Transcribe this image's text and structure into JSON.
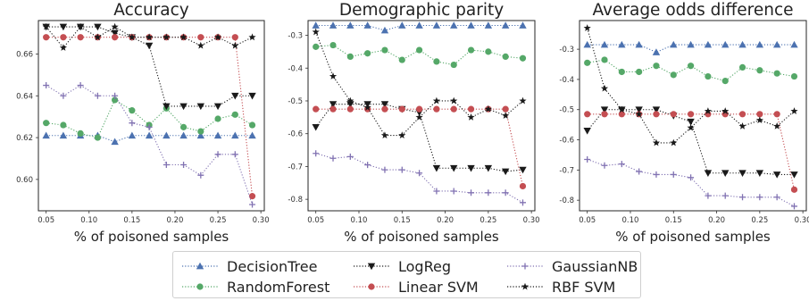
{
  "chart_data": [
    {
      "type": "line",
      "title": "Accuracy",
      "xlabel": "% of poisoned samples",
      "ylabel": "",
      "xlim": [
        0.041,
        0.304
      ],
      "ylim": [
        0.585,
        0.676
      ],
      "xticks": [
        "0.05",
        "0.10",
        "0.15",
        "0.20",
        "0.25",
        "0.30"
      ],
      "yticks": [
        "0.60",
        "0.62",
        "0.64",
        "0.66"
      ],
      "x": [
        0.05,
        0.07,
        0.09,
        0.11,
        0.13,
        0.15,
        0.17,
        0.19,
        0.21,
        0.23,
        0.25,
        0.27,
        0.29
      ],
      "series": [
        {
          "name": "DecisionTree",
          "values": [
            0.621,
            0.621,
            0.621,
            0.621,
            0.618,
            0.621,
            0.621,
            0.621,
            0.621,
            0.621,
            0.621,
            0.621,
            0.621
          ]
        },
        {
          "name": "RandomForest",
          "values": [
            0.627,
            0.626,
            0.622,
            0.62,
            0.638,
            0.633,
            0.626,
            0.634,
            0.625,
            0.623,
            0.629,
            0.631,
            0.626
          ]
        },
        {
          "name": "LogReg",
          "values": [
            0.673,
            0.673,
            0.673,
            0.673,
            0.67,
            0.668,
            0.664,
            0.635,
            0.635,
            0.635,
            0.635,
            0.64,
            0.64
          ]
        },
        {
          "name": "Linear SVM",
          "values": [
            0.668,
            0.668,
            0.668,
            0.668,
            0.668,
            0.668,
            0.668,
            0.668,
            0.668,
            0.668,
            0.668,
            0.668,
            0.592
          ]
        },
        {
          "name": "GaussianNB",
          "values": [
            0.645,
            0.64,
            0.645,
            0.64,
            0.64,
            0.627,
            0.625,
            0.607,
            0.607,
            0.602,
            0.612,
            0.612,
            0.588
          ]
        },
        {
          "name": "RBF SVM",
          "values": [
            0.673,
            0.663,
            0.673,
            0.668,
            0.673,
            0.668,
            0.668,
            0.668,
            0.668,
            0.664,
            0.668,
            0.664,
            0.668
          ]
        }
      ]
    },
    {
      "type": "line",
      "title": "Demographic parity",
      "xlabel": "% of poisoned samples",
      "ylabel": "",
      "xlim": [
        0.041,
        0.304
      ],
      "ylim": [
        -0.835,
        -0.255
      ],
      "xticks": [
        "0.05",
        "0.10",
        "0.15",
        "0.20",
        "0.25",
        "0.30"
      ],
      "yticks": [
        "-0.3",
        "-0.4",
        "-0.5",
        "-0.6",
        "-0.7",
        "-0.8"
      ],
      "x": [
        0.05,
        0.07,
        0.09,
        0.11,
        0.13,
        0.15,
        0.17,
        0.19,
        0.21,
        0.23,
        0.25,
        0.27,
        0.29
      ],
      "series": [
        {
          "name": "DecisionTree",
          "values": [
            -0.27,
            -0.27,
            -0.27,
            -0.27,
            -0.285,
            -0.27,
            -0.27,
            -0.27,
            -0.27,
            -0.27,
            -0.27,
            -0.27,
            -0.27
          ]
        },
        {
          "name": "RandomForest",
          "values": [
            -0.335,
            -0.33,
            -0.365,
            -0.355,
            -0.345,
            -0.375,
            -0.345,
            -0.38,
            -0.39,
            -0.345,
            -0.35,
            -0.365,
            -0.37
          ]
        },
        {
          "name": "LogReg",
          "values": [
            -0.58,
            -0.51,
            -0.51,
            -0.51,
            -0.51,
            -0.525,
            -0.535,
            -0.705,
            -0.705,
            -0.705,
            -0.705,
            -0.715,
            -0.71
          ]
        },
        {
          "name": "Linear SVM",
          "values": [
            -0.525,
            -0.525,
            -0.525,
            -0.525,
            -0.525,
            -0.525,
            -0.525,
            -0.525,
            -0.525,
            -0.525,
            -0.525,
            -0.525,
            -0.76
          ]
        },
        {
          "name": "GaussianNB",
          "values": [
            -0.66,
            -0.675,
            -0.67,
            -0.695,
            -0.71,
            -0.71,
            -0.72,
            -0.775,
            -0.775,
            -0.78,
            -0.78,
            -0.78,
            -0.81
          ]
        },
        {
          "name": "RBF SVM",
          "values": [
            -0.29,
            -0.425,
            -0.5,
            -0.52,
            -0.605,
            -0.605,
            -0.55,
            -0.5,
            -0.5,
            -0.55,
            -0.525,
            -0.545,
            -0.5
          ]
        }
      ]
    },
    {
      "type": "line",
      "title": "Average odds difference",
      "xlabel": "% of poisoned samples",
      "ylabel": "",
      "xlim": [
        0.041,
        0.304
      ],
      "ylim": [
        -0.835,
        -0.205
      ],
      "xticks": [
        "0.05",
        "0.10",
        "0.15",
        "0.20",
        "0.25",
        "0.30"
      ],
      "yticks": [
        "-0.3",
        "-0.4",
        "-0.5",
        "-0.6",
        "-0.7",
        "-0.8"
      ],
      "x": [
        0.05,
        0.07,
        0.09,
        0.11,
        0.13,
        0.15,
        0.17,
        0.19,
        0.21,
        0.23,
        0.25,
        0.27,
        0.29
      ],
      "series": [
        {
          "name": "DecisionTree",
          "values": [
            -0.285,
            -0.285,
            -0.285,
            -0.285,
            -0.31,
            -0.285,
            -0.285,
            -0.285,
            -0.285,
            -0.285,
            -0.285,
            -0.285,
            -0.285
          ]
        },
        {
          "name": "RandomForest",
          "values": [
            -0.345,
            -0.335,
            -0.375,
            -0.375,
            -0.355,
            -0.385,
            -0.355,
            -0.39,
            -0.405,
            -0.36,
            -0.37,
            -0.38,
            -0.39
          ]
        },
        {
          "name": "LogReg",
          "values": [
            -0.57,
            -0.5,
            -0.5,
            -0.5,
            -0.5,
            -0.52,
            -0.54,
            -0.71,
            -0.71,
            -0.71,
            -0.71,
            -0.715,
            -0.715
          ]
        },
        {
          "name": "Linear SVM",
          "values": [
            -0.515,
            -0.515,
            -0.515,
            -0.515,
            -0.515,
            -0.515,
            -0.515,
            -0.515,
            -0.515,
            -0.515,
            -0.515,
            -0.515,
            -0.765
          ]
        },
        {
          "name": "GaussianNB",
          "values": [
            -0.665,
            -0.685,
            -0.68,
            -0.705,
            -0.715,
            -0.715,
            -0.725,
            -0.785,
            -0.785,
            -0.79,
            -0.79,
            -0.79,
            -0.82
          ]
        },
        {
          "name": "RBF SVM",
          "values": [
            -0.23,
            -0.43,
            -0.5,
            -0.515,
            -0.61,
            -0.61,
            -0.56,
            -0.505,
            -0.505,
            -0.555,
            -0.535,
            -0.555,
            -0.505
          ]
        }
      ]
    }
  ],
  "series_styles": {
    "DecisionTree": {
      "color": "#4c72b0",
      "marker": "triangle-up"
    },
    "RandomForest": {
      "color": "#55a868",
      "marker": "circle"
    },
    "LogReg": {
      "color": "#1a1a1a",
      "marker": "triangle-down"
    },
    "Linear SVM": {
      "color": "#c44e52",
      "marker": "circle"
    },
    "GaussianNB": {
      "color": "#8172b2",
      "marker": "plus"
    },
    "RBF SVM": {
      "color": "#1a1a1a",
      "marker": "star"
    }
  },
  "legend": {
    "placement": "bottom-center",
    "items": [
      "DecisionTree",
      "RandomForest",
      "LogReg",
      "Linear SVM",
      "GaussianNB",
      "RBF SVM"
    ]
  }
}
